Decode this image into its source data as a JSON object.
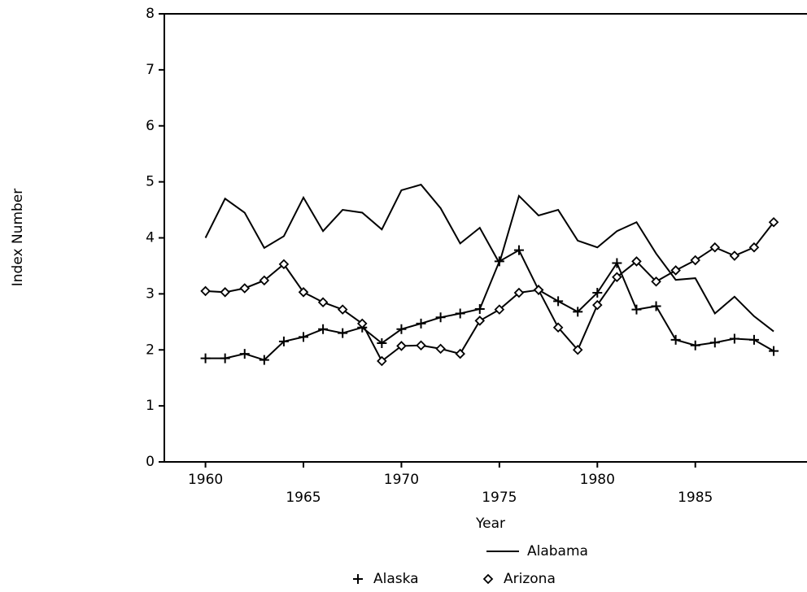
{
  "chart_data": {
    "type": "line",
    "x_label": "Year",
    "y_label": "Index Number",
    "x": [
      1960,
      1961,
      1962,
      1963,
      1964,
      1965,
      1966,
      1967,
      1968,
      1969,
      1970,
      1971,
      1972,
      1973,
      1974,
      1975,
      1976,
      1977,
      1978,
      1979,
      1980,
      1981,
      1982,
      1983,
      1984,
      1985,
      1986,
      1987,
      1988,
      1989
    ],
    "series": [
      {
        "name": "Alabama",
        "color": "#000000",
        "marker": "none",
        "values": [
          4.0,
          4.7,
          4.45,
          3.82,
          4.03,
          4.72,
          4.12,
          4.5,
          4.45,
          4.15,
          4.85,
          4.95,
          4.53,
          3.9,
          4.18,
          3.55,
          4.75,
          4.4,
          4.5,
          3.95,
          3.83,
          4.12,
          4.28,
          3.72,
          3.25,
          3.28,
          2.65,
          2.95,
          2.6,
          2.33
        ]
      },
      {
        "name": "Alaska",
        "color": "#000000",
        "marker": "plus",
        "values": [
          1.85,
          1.85,
          1.93,
          1.82,
          2.15,
          2.23,
          2.37,
          2.3,
          2.4,
          2.12,
          2.37,
          2.47,
          2.58,
          2.65,
          2.73,
          3.58,
          3.78,
          3.07,
          2.87,
          2.68,
          3.02,
          3.55,
          2.72,
          2.78,
          2.18,
          2.08,
          2.13,
          2.2,
          2.18,
          1.98
        ]
      },
      {
        "name": "Arizona",
        "color": "#000000",
        "marker": "diamond",
        "values": [
          3.05,
          3.03,
          3.1,
          3.24,
          3.53,
          3.03,
          2.85,
          2.72,
          2.47,
          1.8,
          2.07,
          2.08,
          2.02,
          1.93,
          2.52,
          2.72,
          3.02,
          3.07,
          2.4,
          2.0,
          2.8,
          3.3,
          3.58,
          3.22,
          3.42,
          3.6,
          3.83,
          3.68,
          3.83,
          4.28
        ]
      }
    ],
    "xlim": [
      1957.9,
      1990.7
    ],
    "xticks": [
      1960,
      1965,
      1970,
      1975,
      1980,
      1985
    ],
    "ylim": [
      0,
      8
    ],
    "yticks": [
      0,
      1,
      2,
      3,
      4,
      5,
      6,
      7,
      8
    ]
  }
}
